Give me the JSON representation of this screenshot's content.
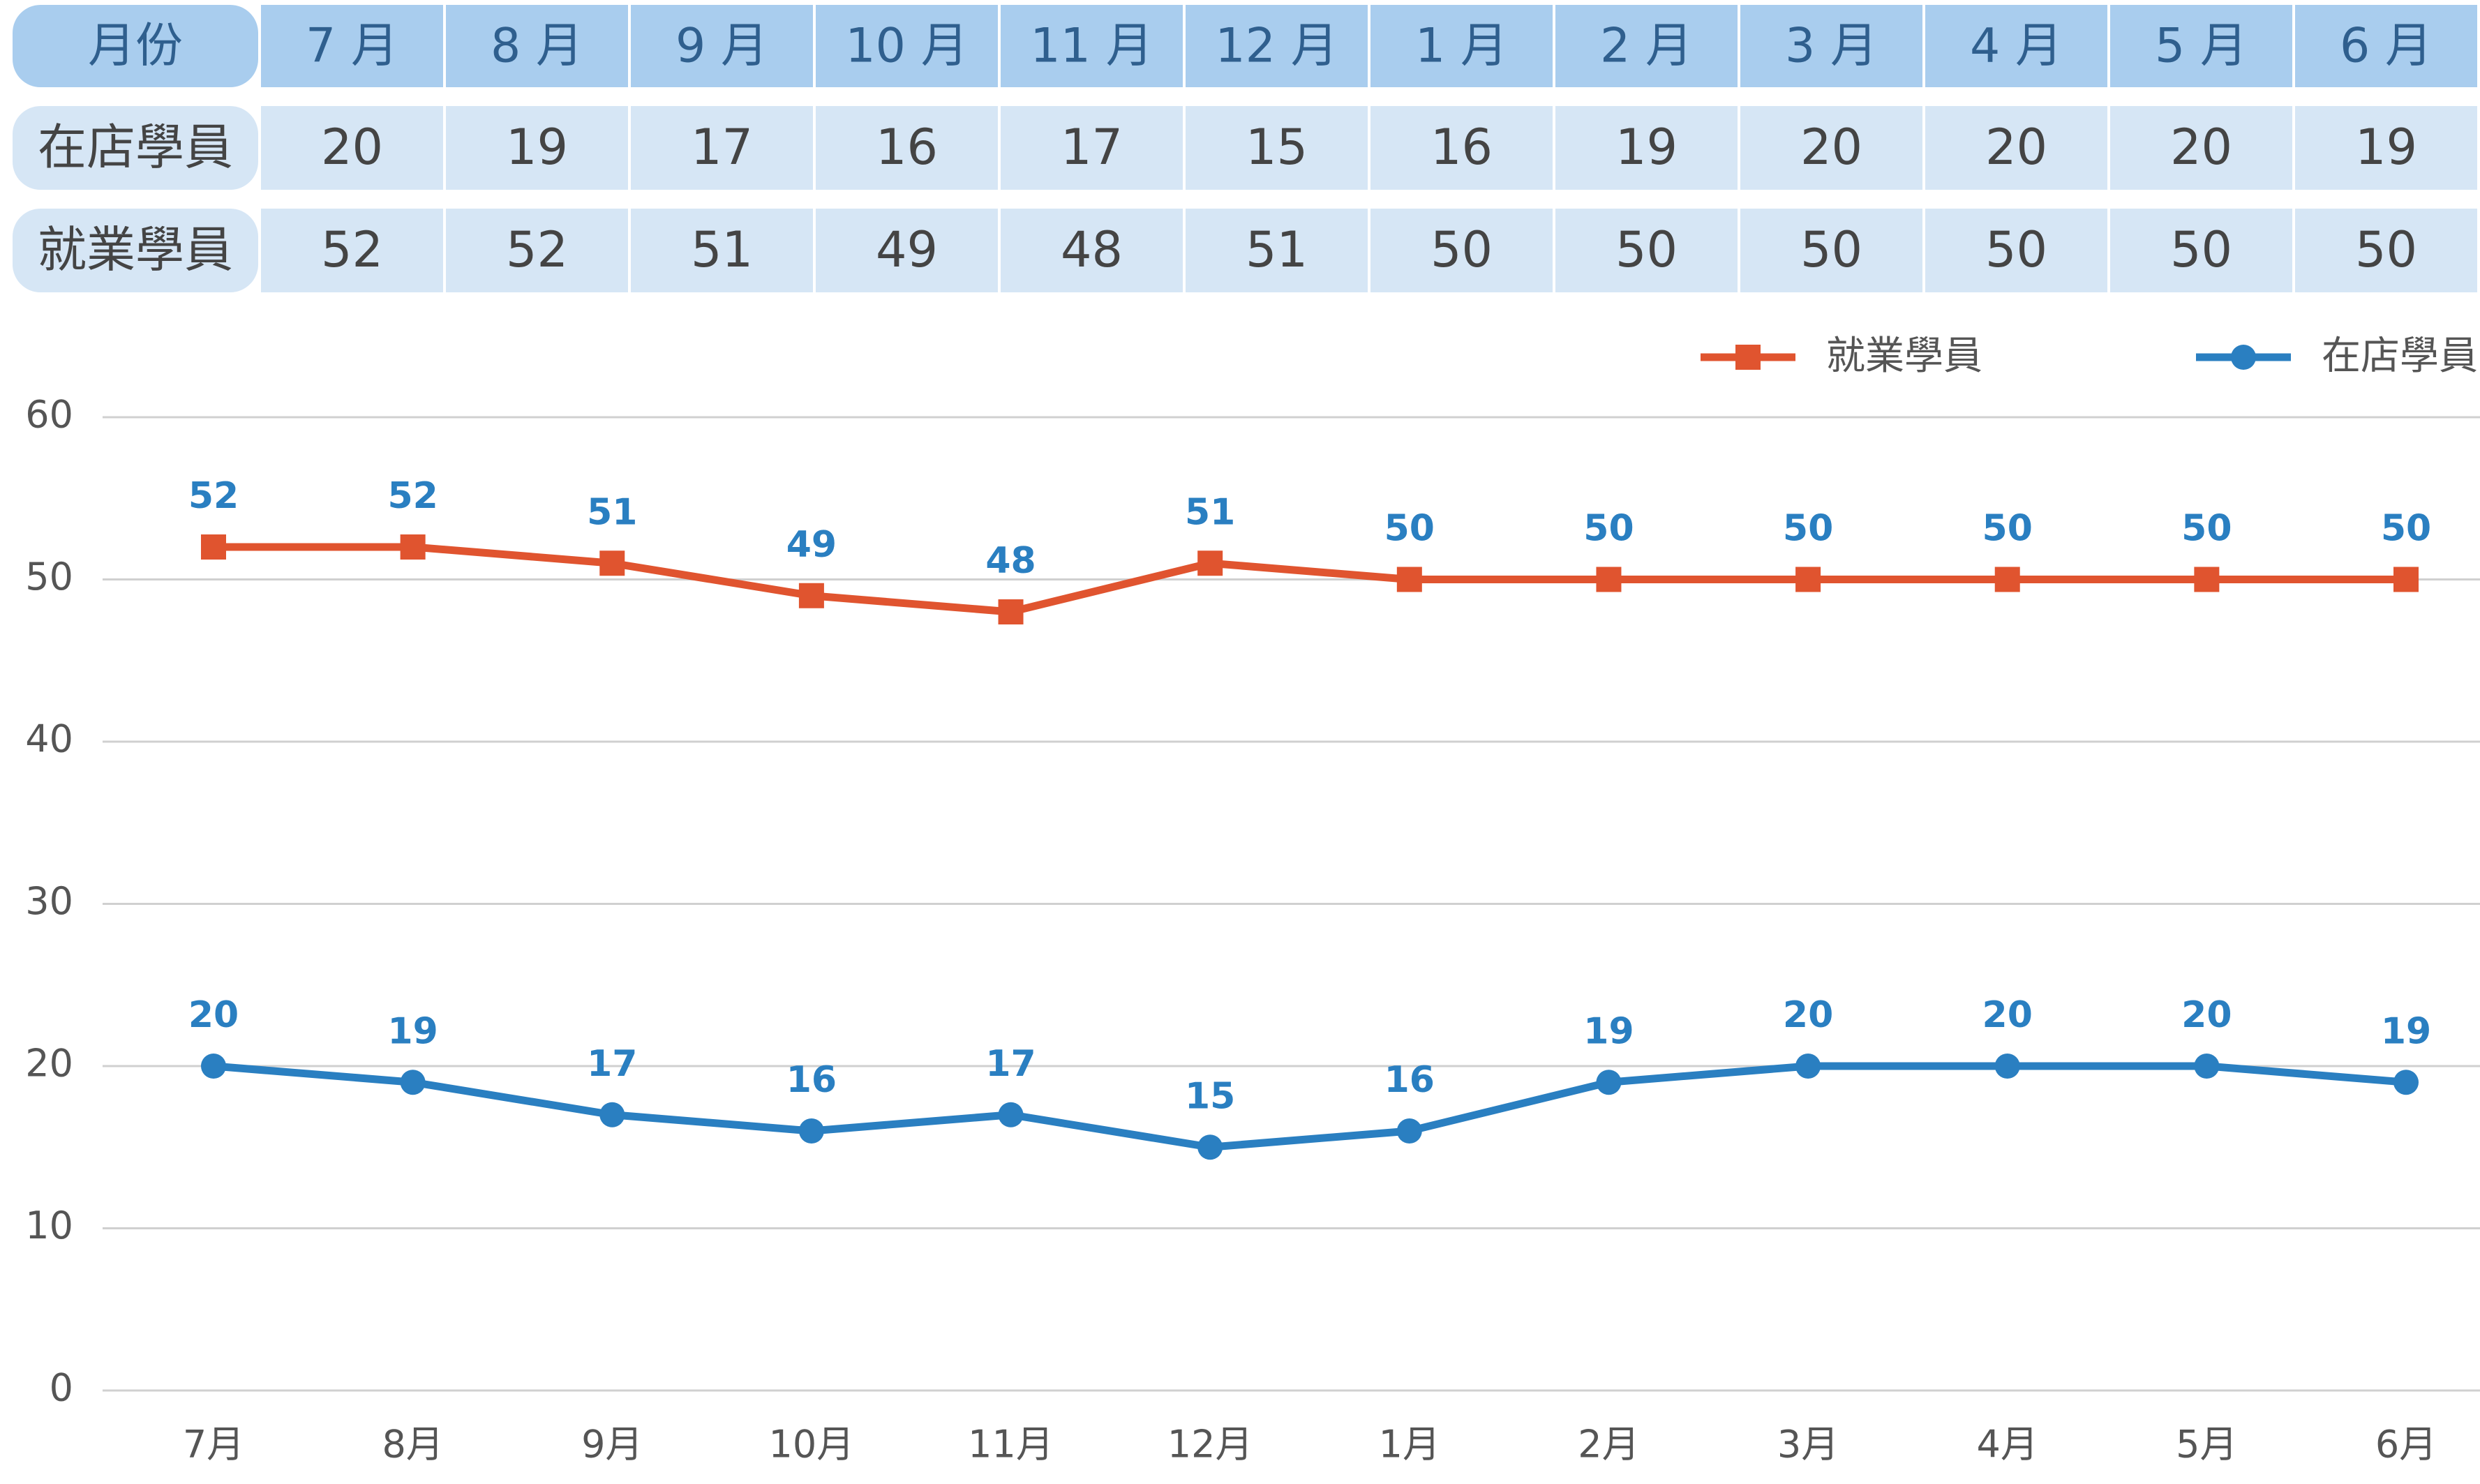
{
  "table": {
    "header": [
      "月份",
      "7 月",
      "8 月",
      "9 月",
      "10 月",
      "11 月",
      "12 月",
      "1 月",
      "2 月",
      "3 月",
      "4 月",
      "5 月",
      "6 月"
    ],
    "rows": [
      [
        "在店學員",
        20,
        19,
        17,
        16,
        17,
        15,
        16,
        19,
        20,
        20,
        20,
        19
      ],
      [
        "就業學員",
        52,
        52,
        51,
        49,
        48,
        51,
        50,
        50,
        50,
        50,
        50,
        50
      ]
    ]
  },
  "chart_data": {
    "type": "line",
    "categories": [
      "7月",
      "8月",
      "9月",
      "10月",
      "11月",
      "12月",
      "1月",
      "2月",
      "3月",
      "4月",
      "5月",
      "6月"
    ],
    "series": [
      {
        "name": "就業學員",
        "color": "#e0542f",
        "marker": "square",
        "values": [
          52,
          52,
          51,
          49,
          48,
          51,
          50,
          50,
          50,
          50,
          50,
          50
        ]
      },
      {
        "name": "在店學員",
        "color": "#2a7fc1",
        "marker": "circle",
        "values": [
          20,
          19,
          17,
          16,
          17,
          15,
          16,
          19,
          20,
          20,
          20,
          19
        ]
      }
    ],
    "value_label_color": "#2a7fc1",
    "ylim": [
      0,
      60
    ],
    "yticks": [
      0,
      10,
      20,
      30,
      40,
      50,
      60
    ],
    "grid": true,
    "legend": "top-right"
  }
}
